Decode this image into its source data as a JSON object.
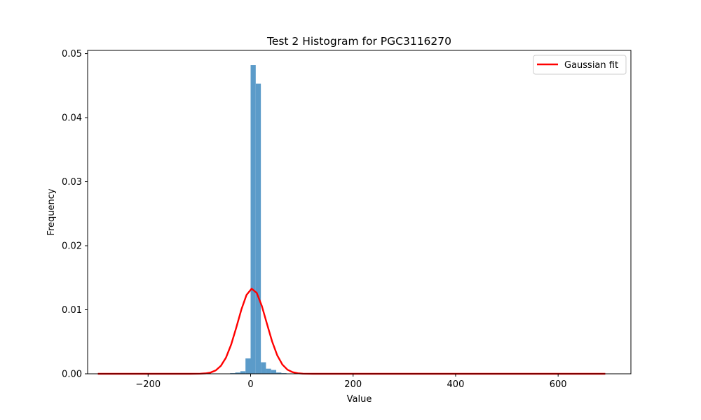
{
  "chart_data": {
    "type": "bar",
    "title": "Test 2 Histogram for PGC3116270",
    "xlabel": "Value",
    "ylabel": "Frequency",
    "xlim": [
      -318,
      742
    ],
    "ylim": [
      0,
      0.0505
    ],
    "x_ticks": [
      -200,
      0,
      200,
      400,
      600
    ],
    "x_tick_labels": [
      "−200",
      "0",
      "200",
      "400",
      "600"
    ],
    "y_ticks": [
      0.0,
      0.01,
      0.02,
      0.03,
      0.04,
      0.05
    ],
    "y_tick_labels": [
      "0.00",
      "0.01",
      "0.02",
      "0.03",
      "0.04",
      "0.05"
    ],
    "grid": false,
    "legend": {
      "position": "top-right",
      "entries": [
        "Gaussian fit"
      ]
    },
    "histogram": {
      "color": "#5b9bc9",
      "bins": [
        {
          "x0": -80,
          "x1": -70,
          "value": 5e-05
        },
        {
          "x0": -70,
          "x1": -60,
          "value": 5e-05
        },
        {
          "x0": -60,
          "x1": -50,
          "value": 5e-05
        },
        {
          "x0": -50,
          "x1": -40,
          "value": 5e-05
        },
        {
          "x0": -40,
          "x1": -30,
          "value": 0.0001
        },
        {
          "x0": -30,
          "x1": -20,
          "value": 0.0002
        },
        {
          "x0": -20,
          "x1": -10,
          "value": 0.0004
        },
        {
          "x0": -10,
          "x1": 0,
          "value": 0.0024
        },
        {
          "x0": 0,
          "x1": 10,
          "value": 0.0482
        },
        {
          "x0": 10,
          "x1": 20,
          "value": 0.0453
        },
        {
          "x0": 20,
          "x1": 30,
          "value": 0.0018
        },
        {
          "x0": 30,
          "x1": 40,
          "value": 0.0008
        },
        {
          "x0": 40,
          "x1": 50,
          "value": 0.0006
        },
        {
          "x0": 50,
          "x1": 60,
          "value": 0.0002
        },
        {
          "x0": 60,
          "x1": 70,
          "value": 0.0001
        }
      ]
    },
    "series": [
      {
        "name": "Gaussian fit",
        "type": "line",
        "color": "#ff0000",
        "mean": 3,
        "sigma": 28,
        "peak": 0.0133,
        "x_range": [
          -298,
          692
        ],
        "points": 100
      }
    ]
  }
}
